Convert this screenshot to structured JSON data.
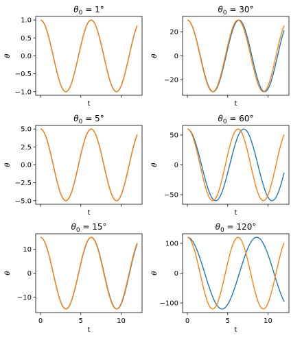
{
  "chart_data": [
    {
      "type": "line",
      "title_var": "θ",
      "title_sub": "0",
      "title_rest": " = 1°",
      "xlabel": "t",
      "ylabel": "θ",
      "xlim": [
        -0.6,
        12.6
      ],
      "ylim": [
        -1.1,
        1.1
      ],
      "yticks": [
        -1.0,
        -0.5,
        0.0,
        0.5,
        1.0
      ],
      "yticklabels": [
        "−1.0",
        "−0.5",
        "0.0",
        "0.5",
        "1.0"
      ],
      "xticks": [
        0,
        5,
        10
      ],
      "xticklabels": [],
      "amplitude_deg": 1,
      "series": [
        {
          "color": "#1f77b4",
          "t_max": 12,
          "period": 6.28
        },
        {
          "color": "#ff7f0e",
          "t_max": 12,
          "period": 6.283
        }
      ]
    },
    {
      "type": "line",
      "title_var": "θ",
      "title_sub": "0",
      "title_rest": " = 30°",
      "xlabel": "t",
      "ylabel": "θ",
      "xlim": [
        -0.6,
        12.6
      ],
      "ylim": [
        -33,
        33
      ],
      "yticks": [
        -20,
        0,
        20
      ],
      "yticklabels": [
        "−20",
        "0",
        "20"
      ],
      "xticks": [
        0,
        5,
        10
      ],
      "xticklabels": [],
      "amplitude_deg": 30,
      "series": [
        {
          "color": "#1f77b4",
          "t_max": 12,
          "period": 6.395
        },
        {
          "color": "#ff7f0e",
          "t_max": 12,
          "period": 6.283
        }
      ]
    },
    {
      "type": "line",
      "title_var": "θ",
      "title_sub": "0",
      "title_rest": " = 5°",
      "xlabel": "t",
      "ylabel": "θ",
      "xlim": [
        -0.6,
        12.6
      ],
      "ylim": [
        -5.5,
        5.5
      ],
      "yticks": [
        -5.0,
        -2.5,
        0.0,
        2.5,
        5.0
      ],
      "yticklabels": [
        "−5.0",
        "−2.5",
        "0.0",
        "2.5",
        "5.0"
      ],
      "xticks": [
        0,
        5,
        10
      ],
      "xticklabels": [],
      "amplitude_deg": 5,
      "series": [
        {
          "color": "#1f77b4",
          "t_max": 12,
          "period": 6.286
        },
        {
          "color": "#ff7f0e",
          "t_max": 12,
          "period": 6.283
        }
      ]
    },
    {
      "type": "line",
      "title_var": "θ",
      "title_sub": "0",
      "title_rest": " = 60°",
      "xlabel": "t",
      "ylabel": "θ",
      "xlim": [
        -0.6,
        12.6
      ],
      "ylim": [
        -66,
        66
      ],
      "yticks": [
        -50,
        0,
        50
      ],
      "yticklabels": [
        "−50",
        "0",
        "50"
      ],
      "xticks": [
        0,
        5,
        10
      ],
      "xticklabels": [],
      "amplitude_deg": 60,
      "series": [
        {
          "color": "#1f77b4",
          "t_max": 12,
          "period": 7.0
        },
        {
          "color": "#ff7f0e",
          "t_max": 12,
          "period": 6.283
        }
      ]
    },
    {
      "type": "line",
      "title_var": "θ",
      "title_sub": "0",
      "title_rest": " = 15°",
      "xlabel": "t",
      "ylabel": "θ",
      "xlim": [
        -0.6,
        12.6
      ],
      "ylim": [
        -16.5,
        16.5
      ],
      "yticks": [
        -10,
        0,
        10
      ],
      "yticklabels": [
        "−10",
        "0",
        "10"
      ],
      "xticks": [
        0,
        5,
        10
      ],
      "xticklabels": [
        "0",
        "5",
        "10"
      ],
      "amplitude_deg": 15,
      "series": [
        {
          "color": "#1f77b4",
          "t_max": 12,
          "period": 6.31
        },
        {
          "color": "#ff7f0e",
          "t_max": 12,
          "period": 6.283
        }
      ]
    },
    {
      "type": "line",
      "title_var": "θ",
      "title_sub": "0",
      "title_rest": " = 120°",
      "xlabel": "t",
      "ylabel": "θ",
      "xlim": [
        -0.6,
        12.6
      ],
      "ylim": [
        -132,
        132
      ],
      "yticks": [
        -100,
        0,
        100
      ],
      "yticklabels": [
        "−100",
        "0",
        "100"
      ],
      "xticks": [
        0,
        5,
        10
      ],
      "xticklabels": [
        "0",
        "5",
        "10"
      ],
      "amplitude_deg": 120,
      "series": [
        {
          "color": "#1f77b4",
          "t_max": 12,
          "period": 8.6
        },
        {
          "color": "#ff7f0e",
          "t_max": 12,
          "period": 6.283
        }
      ]
    }
  ]
}
